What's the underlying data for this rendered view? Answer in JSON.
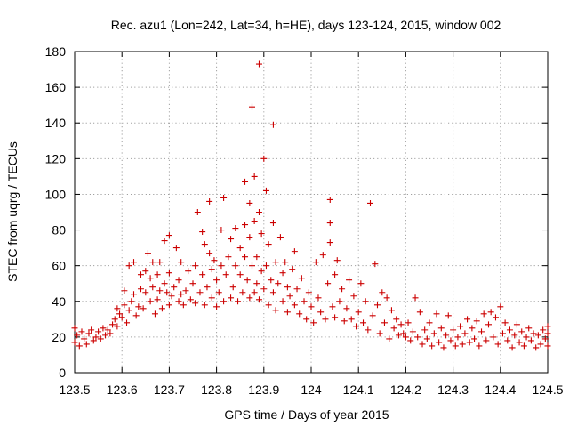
{
  "chart_data": {
    "type": "scatter",
    "title": "Rec. azu1 (Lon=242, Lat=34, h=HE), days 123-124, 2015, window 002",
    "xlabel": "GPS time / Days of year 2015",
    "ylabel": "STEC from uqrg / TECUs",
    "xlim": [
      123.5,
      124.5
    ],
    "ylim": [
      0,
      180
    ],
    "xticks": [
      123.5,
      123.6,
      123.7,
      123.8,
      123.9,
      124,
      124.1,
      124.2,
      124.3,
      124.4,
      124.5
    ],
    "xtick_labels": [
      "123.5",
      "123.6",
      "123.7",
      "123.8",
      "123.9",
      "124",
      "124.1",
      "124.2",
      "124.3",
      "124.4",
      "124.5"
    ],
    "yticks": [
      0,
      20,
      40,
      60,
      80,
      100,
      120,
      140,
      160,
      180
    ],
    "ytick_labels": [
      "0",
      "20",
      "40",
      "60",
      "80",
      "100",
      "120",
      "140",
      "160",
      "180"
    ],
    "grid": true,
    "marker": "+",
    "color": "#cc0000",
    "points": [
      [
        123.5,
        25
      ],
      [
        123.5,
        17
      ],
      [
        123.505,
        21
      ],
      [
        123.51,
        15
      ],
      [
        123.515,
        23
      ],
      [
        123.52,
        19
      ],
      [
        123.525,
        16
      ],
      [
        123.53,
        22
      ],
      [
        123.535,
        24
      ],
      [
        123.54,
        18
      ],
      [
        123.545,
        20
      ],
      [
        123.55,
        23
      ],
      [
        123.555,
        19
      ],
      [
        123.56,
        25
      ],
      [
        123.565,
        21
      ],
      [
        123.57,
        24
      ],
      [
        123.575,
        22
      ],
      [
        123.58,
        27
      ],
      [
        123.585,
        30
      ],
      [
        123.59,
        26
      ],
      [
        123.59,
        36
      ],
      [
        123.595,
        33
      ],
      [
        123.6,
        31
      ],
      [
        123.605,
        38
      ],
      [
        123.605,
        46
      ],
      [
        123.61,
        28
      ],
      [
        123.615,
        35
      ],
      [
        123.615,
        60
      ],
      [
        123.62,
        40
      ],
      [
        123.625,
        44
      ],
      [
        123.625,
        62
      ],
      [
        123.63,
        32
      ],
      [
        123.635,
        37
      ],
      [
        123.64,
        47
      ],
      [
        123.64,
        55
      ],
      [
        123.645,
        36
      ],
      [
        123.65,
        45
      ],
      [
        123.65,
        57
      ],
      [
        123.655,
        67
      ],
      [
        123.66,
        40
      ],
      [
        123.66,
        53
      ],
      [
        123.665,
        48
      ],
      [
        123.665,
        62
      ],
      [
        123.67,
        33
      ],
      [
        123.675,
        41
      ],
      [
        123.675,
        55
      ],
      [
        123.68,
        46
      ],
      [
        123.68,
        62
      ],
      [
        123.685,
        36
      ],
      [
        123.69,
        50
      ],
      [
        123.69,
        74
      ],
      [
        123.695,
        45
      ],
      [
        123.7,
        38
      ],
      [
        123.7,
        56
      ],
      [
        123.7,
        77
      ],
      [
        123.705,
        43
      ],
      [
        123.71,
        48
      ],
      [
        123.715,
        70
      ],
      [
        123.72,
        40
      ],
      [
        123.72,
        52
      ],
      [
        123.725,
        44
      ],
      [
        123.725,
        62
      ],
      [
        123.73,
        38
      ],
      [
        123.735,
        46
      ],
      [
        123.74,
        57
      ],
      [
        123.745,
        41
      ],
      [
        123.75,
        50
      ],
      [
        123.755,
        39
      ],
      [
        123.755,
        60
      ],
      [
        123.76,
        90
      ],
      [
        123.765,
        45
      ],
      [
        123.77,
        55
      ],
      [
        123.77,
        79
      ],
      [
        123.775,
        38
      ],
      [
        123.775,
        72
      ],
      [
        123.78,
        48
      ],
      [
        123.785,
        67
      ],
      [
        123.785,
        96
      ],
      [
        123.79,
        42
      ],
      [
        123.79,
        58
      ],
      [
        123.795,
        63
      ],
      [
        123.8,
        37
      ],
      [
        123.8,
        52
      ],
      [
        123.805,
        45
      ],
      [
        123.81,
        60
      ],
      [
        123.81,
        80
      ],
      [
        123.815,
        40
      ],
      [
        123.815,
        98
      ],
      [
        123.82,
        55
      ],
      [
        123.825,
        65
      ],
      [
        123.83,
        42
      ],
      [
        123.83,
        75
      ],
      [
        123.835,
        48
      ],
      [
        123.84,
        60
      ],
      [
        123.84,
        81
      ],
      [
        123.845,
        40
      ],
      [
        123.85,
        55
      ],
      [
        123.85,
        70
      ],
      [
        123.855,
        45
      ],
      [
        123.86,
        65
      ],
      [
        123.86,
        83
      ],
      [
        123.86,
        107
      ],
      [
        123.865,
        52
      ],
      [
        123.87,
        42
      ],
      [
        123.87,
        76
      ],
      [
        123.87,
        95
      ],
      [
        123.875,
        60
      ],
      [
        123.875,
        149
      ],
      [
        123.88,
        45
      ],
      [
        123.88,
        85
      ],
      [
        123.88,
        110
      ],
      [
        123.885,
        50
      ],
      [
        123.885,
        65
      ],
      [
        123.89,
        41
      ],
      [
        123.89,
        90
      ],
      [
        123.89,
        173
      ],
      [
        123.895,
        57
      ],
      [
        123.895,
        78
      ],
      [
        123.9,
        47
      ],
      [
        123.9,
        120
      ],
      [
        123.905,
        60
      ],
      [
        123.905,
        102
      ],
      [
        123.91,
        38
      ],
      [
        123.91,
        72
      ],
      [
        123.915,
        52
      ],
      [
        123.92,
        45
      ],
      [
        123.92,
        84
      ],
      [
        123.92,
        139
      ],
      [
        123.925,
        35
      ],
      [
        123.925,
        62
      ],
      [
        123.93,
        50
      ],
      [
        123.935,
        76
      ],
      [
        123.94,
        40
      ],
      [
        123.94,
        56
      ],
      [
        123.945,
        62
      ],
      [
        123.95,
        34
      ],
      [
        123.95,
        48
      ],
      [
        123.955,
        43
      ],
      [
        123.96,
        58
      ],
      [
        123.965,
        38
      ],
      [
        123.965,
        68
      ],
      [
        123.97,
        47
      ],
      [
        123.975,
        33
      ],
      [
        123.98,
        53
      ],
      [
        123.985,
        40
      ],
      [
        123.99,
        30
      ],
      [
        123.995,
        45
      ],
      [
        124.0,
        37
      ],
      [
        124.005,
        28
      ],
      [
        124.01,
        62
      ],
      [
        124.015,
        42
      ],
      [
        124.02,
        34
      ],
      [
        124.025,
        66
      ],
      [
        124.03,
        30
      ],
      [
        124.035,
        50
      ],
      [
        124.04,
        97
      ],
      [
        124.04,
        73
      ],
      [
        124.04,
        84
      ],
      [
        124.045,
        37
      ],
      [
        124.05,
        55
      ],
      [
        124.05,
        31
      ],
      [
        124.055,
        63
      ],
      [
        124.06,
        40
      ],
      [
        124.065,
        47
      ],
      [
        124.07,
        29
      ],
      [
        124.075,
        36
      ],
      [
        124.08,
        52
      ],
      [
        124.085,
        30
      ],
      [
        124.09,
        43
      ],
      [
        124.095,
        26
      ],
      [
        124.1,
        34
      ],
      [
        124.105,
        50
      ],
      [
        124.11,
        28
      ],
      [
        124.115,
        40
      ],
      [
        124.12,
        24
      ],
      [
        124.125,
        95
      ],
      [
        124.13,
        32
      ],
      [
        124.135,
        61
      ],
      [
        124.14,
        38
      ],
      [
        124.145,
        22
      ],
      [
        124.15,
        45
      ],
      [
        124.155,
        28
      ],
      [
        124.16,
        42
      ],
      [
        124.165,
        19
      ],
      [
        124.17,
        35
      ],
      [
        124.175,
        25
      ],
      [
        124.18,
        30
      ],
      [
        124.185,
        21
      ],
      [
        124.19,
        27
      ],
      [
        124.195,
        22
      ],
      [
        124.2,
        20
      ],
      [
        124.205,
        28
      ],
      [
        124.21,
        18
      ],
      [
        124.215,
        23
      ],
      [
        124.22,
        42
      ],
      [
        124.225,
        20
      ],
      [
        124.23,
        34
      ],
      [
        124.235,
        16
      ],
      [
        124.24,
        24
      ],
      [
        124.245,
        19
      ],
      [
        124.25,
        28
      ],
      [
        124.255,
        15
      ],
      [
        124.26,
        22
      ],
      [
        124.265,
        33
      ],
      [
        124.27,
        17
      ],
      [
        124.275,
        25
      ],
      [
        124.28,
        14
      ],
      [
        124.285,
        21
      ],
      [
        124.29,
        32
      ],
      [
        124.295,
        18
      ],
      [
        124.3,
        24
      ],
      [
        124.305,
        15
      ],
      [
        124.31,
        20
      ],
      [
        124.315,
        26
      ],
      [
        124.32,
        16
      ],
      [
        124.325,
        22
      ],
      [
        124.33,
        30
      ],
      [
        124.335,
        17
      ],
      [
        124.34,
        25
      ],
      [
        124.345,
        19
      ],
      [
        124.35,
        29
      ],
      [
        124.355,
        15
      ],
      [
        124.36,
        23
      ],
      [
        124.365,
        33
      ],
      [
        124.37,
        18
      ],
      [
        124.375,
        27
      ],
      [
        124.38,
        34
      ],
      [
        124.385,
        20
      ],
      [
        124.39,
        31
      ],
      [
        124.395,
        16
      ],
      [
        124.4,
        37
      ],
      [
        124.405,
        22
      ],
      [
        124.41,
        28
      ],
      [
        124.415,
        18
      ],
      [
        124.42,
        24
      ],
      [
        124.425,
        14
      ],
      [
        124.43,
        21
      ],
      [
        124.435,
        27
      ],
      [
        124.44,
        17
      ],
      [
        124.445,
        23
      ],
      [
        124.45,
        15
      ],
      [
        124.455,
        20
      ],
      [
        124.46,
        25
      ],
      [
        124.465,
        18
      ],
      [
        124.47,
        22
      ],
      [
        124.475,
        14
      ],
      [
        124.48,
        21
      ],
      [
        124.485,
        16
      ],
      [
        124.49,
        24
      ],
      [
        124.495,
        19
      ],
      [
        124.5,
        22
      ],
      [
        124.5,
        26
      ],
      [
        124.5,
        15
      ]
    ]
  }
}
